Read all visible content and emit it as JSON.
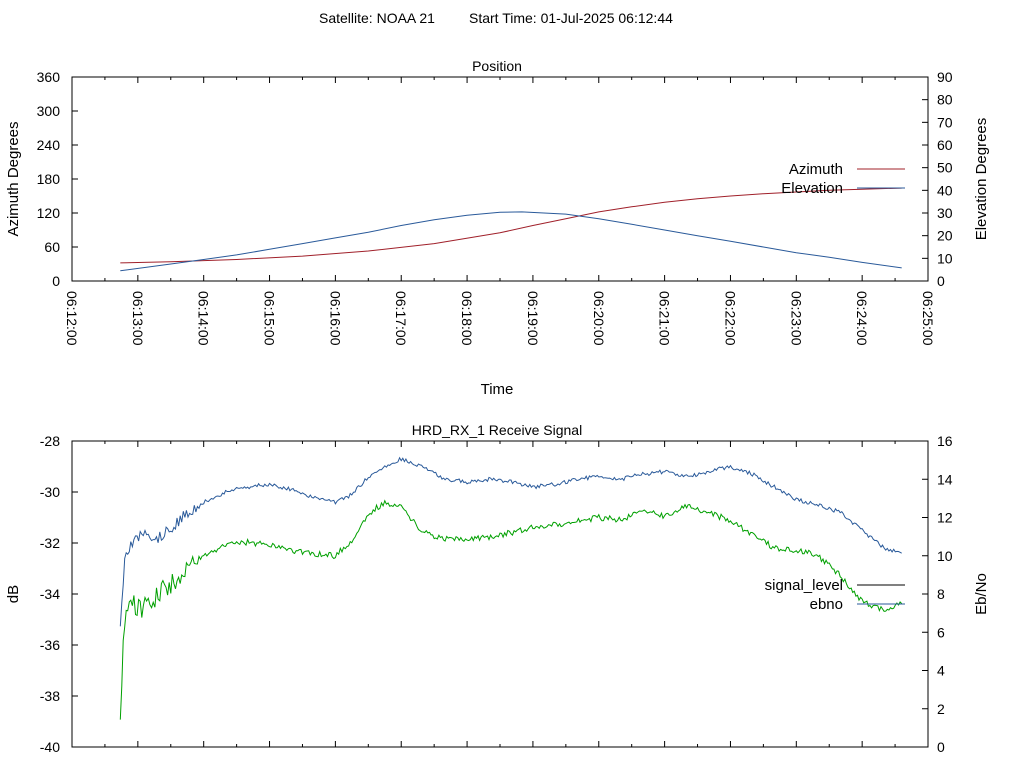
{
  "header": {
    "satellite": "Satellite: NOAA 21",
    "start_time": "Start Time: 01-Jul-2025 06:12:44"
  },
  "chart_data": [
    {
      "type": "line",
      "title": "Position",
      "xlabel": "Time",
      "ylabel": "Azimuth Degrees",
      "y2label": "Elevation Degrees",
      "xlim": [
        "06:12:00",
        "06:25:00"
      ],
      "ylim": [
        0,
        360
      ],
      "y2lim": [
        0,
        90
      ],
      "x_ticks": [
        "06:12:00",
        "06:13:00",
        "06:14:00",
        "06:15:00",
        "06:16:00",
        "06:17:00",
        "06:18:00",
        "06:19:00",
        "06:20:00",
        "06:21:00",
        "06:22:00",
        "06:23:00",
        "06:24:00",
        "06:25:00"
      ],
      "y_ticks": [
        0,
        60,
        120,
        180,
        240,
        300,
        360
      ],
      "y2_ticks": [
        0,
        10,
        20,
        30,
        40,
        50,
        60,
        70,
        80,
        90
      ],
      "legend_position": "right",
      "series": [
        {
          "name": "Azimuth",
          "color": "#a0202a",
          "axis": "y",
          "x": [
            "06:12:44",
            "06:13:30",
            "06:14:30",
            "06:15:30",
            "06:16:30",
            "06:17:30",
            "06:18:30",
            "06:19:00",
            "06:19:30",
            "06:20:00",
            "06:20:30",
            "06:21:00",
            "06:21:30",
            "06:22:00",
            "06:22:30",
            "06:23:00",
            "06:23:30",
            "06:24:00",
            "06:24:36"
          ],
          "values": [
            32,
            34,
            38,
            44,
            53,
            66,
            85,
            98,
            110,
            122,
            131,
            139,
            145,
            150,
            154,
            157,
            160,
            162,
            164
          ]
        },
        {
          "name": "Elevation",
          "color": "#2a5a9a",
          "axis": "y2",
          "x": [
            "06:12:44",
            "06:13:30",
            "06:14:00",
            "06:14:30",
            "06:15:00",
            "06:15:30",
            "06:16:00",
            "06:16:30",
            "06:17:00",
            "06:17:30",
            "06:18:00",
            "06:18:30",
            "06:18:50",
            "06:19:30",
            "06:20:00",
            "06:20:30",
            "06:21:00",
            "06:21:30",
            "06:22:00",
            "06:22:30",
            "06:23:00",
            "06:23:30",
            "06:24:00",
            "06:24:36"
          ],
          "values": [
            4.5,
            7.5,
            9.5,
            11.5,
            14,
            16.5,
            19,
            21.5,
            24.5,
            27,
            29,
            30.3,
            30.5,
            29.5,
            27.5,
            25,
            22.5,
            20,
            17.5,
            15,
            12.5,
            10.5,
            8.2,
            5.8
          ]
        }
      ]
    },
    {
      "type": "line",
      "title": "HRD_RX_1 Receive Signal",
      "xlabel": "",
      "ylabel": "dB",
      "y2label": "Eb/No",
      "xlim": [
        "06:12:00",
        "06:25:00"
      ],
      "ylim": [
        -40,
        -28
      ],
      "y2lim": [
        0,
        16
      ],
      "y_ticks": [
        -40,
        -38,
        -36,
        -34,
        -32,
        -30,
        -28
      ],
      "y2_ticks": [
        0,
        2,
        4,
        6,
        8,
        10,
        12,
        14,
        16
      ],
      "legend_position": "right",
      "series": [
        {
          "name": "signal_level",
          "color": "#2a5a9a",
          "legend_color": "#000000",
          "axis": "y",
          "x": [
            "06:12:44",
            "06:12:48",
            "06:12:55",
            "06:13:05",
            "06:13:20",
            "06:13:40",
            "06:14:00",
            "06:14:20",
            "06:14:40",
            "06:15:00",
            "06:15:20",
            "06:15:40",
            "06:16:00",
            "06:16:15",
            "06:16:30",
            "06:16:45",
            "06:17:00",
            "06:17:20",
            "06:17:40",
            "06:18:00",
            "06:18:20",
            "06:18:40",
            "06:19:00",
            "06:19:20",
            "06:19:40",
            "06:20:00",
            "06:20:20",
            "06:20:40",
            "06:21:00",
            "06:21:20",
            "06:21:40",
            "06:22:00",
            "06:22:20",
            "06:22:40",
            "06:23:00",
            "06:23:20",
            "06:23:40",
            "06:24:00",
            "06:24:20",
            "06:24:36"
          ],
          "values": [
            -35.5,
            -32.5,
            -32.0,
            -31.6,
            -31.8,
            -31.0,
            -30.4,
            -30.0,
            -29.8,
            -29.7,
            -29.9,
            -30.2,
            -30.4,
            -30.1,
            -29.4,
            -29.0,
            -28.7,
            -29.0,
            -29.5,
            -29.6,
            -29.5,
            -29.6,
            -29.8,
            -29.7,
            -29.5,
            -29.4,
            -29.5,
            -29.3,
            -29.2,
            -29.4,
            -29.2,
            -29.0,
            -29.3,
            -29.8,
            -30.3,
            -30.5,
            -30.8,
            -31.5,
            -32.2,
            -32.4
          ]
        },
        {
          "name": "ebno",
          "color": "#00a000",
          "legend_color": "#2a5a9a",
          "axis": "y2",
          "x": [
            "06:12:44",
            "06:12:48",
            "06:12:55",
            "06:13:05",
            "06:13:20",
            "06:13:40",
            "06:14:00",
            "06:14:20",
            "06:14:40",
            "06:15:00",
            "06:15:20",
            "06:15:40",
            "06:16:00",
            "06:16:15",
            "06:16:30",
            "06:16:45",
            "06:17:00",
            "06:17:20",
            "06:17:40",
            "06:18:00",
            "06:18:20",
            "06:18:40",
            "06:19:00",
            "06:19:20",
            "06:19:40",
            "06:20:00",
            "06:20:20",
            "06:20:40",
            "06:21:00",
            "06:21:20",
            "06:21:40",
            "06:22:00",
            "06:22:20",
            "06:22:40",
            "06:23:00",
            "06:23:20",
            "06:23:40",
            "06:24:00",
            "06:24:20",
            "06:24:36"
          ],
          "values": [
            2.0,
            6.5,
            7.5,
            7.2,
            8.0,
            9.0,
            10.0,
            10.6,
            10.7,
            10.6,
            10.3,
            10.1,
            10.0,
            10.8,
            12.2,
            12.8,
            12.6,
            11.2,
            10.9,
            10.8,
            11.0,
            11.2,
            11.5,
            11.6,
            11.8,
            12.0,
            11.9,
            12.3,
            12.1,
            12.6,
            12.3,
            11.8,
            11.1,
            10.4,
            10.3,
            10.0,
            9.0,
            7.6,
            7.2,
            7.5
          ]
        }
      ]
    }
  ]
}
